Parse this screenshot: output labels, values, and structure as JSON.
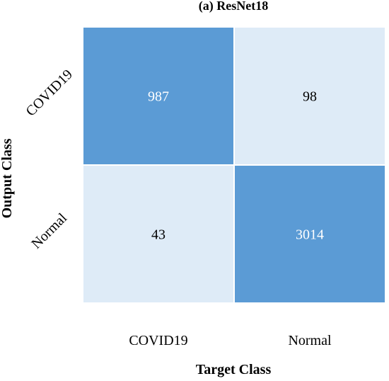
{
  "chart_data": {
    "type": "heatmap",
    "title": "(a) ResNet18",
    "xlabel": "Target Class",
    "ylabel": "Output Class",
    "x_categories": [
      "COVID19",
      "Normal"
    ],
    "y_categories": [
      "COVID19",
      "Normal"
    ],
    "values": [
      [
        987,
        98
      ],
      [
        43,
        3014
      ]
    ],
    "colors": {
      "diagonal": "#5b9bd5",
      "off_diagonal": "#deebf7",
      "diagonal_text": "#ffffff",
      "off_diagonal_text": "#000000",
      "cell_border": "#ffffff"
    }
  }
}
